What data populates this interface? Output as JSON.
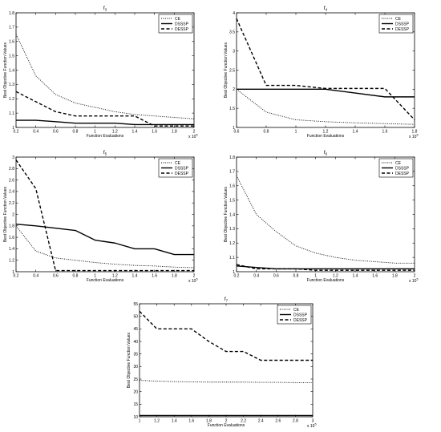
{
  "chart_data": [
    {
      "type": "line",
      "title": "f3",
      "title_base": "f",
      "title_sub": "3",
      "xlabel": "Function Evaluations",
      "ylabel": "Best Objective Function Values",
      "x_exponent": "x 10",
      "x_exponent_power": "5",
      "xlim": [
        0.2,
        2
      ],
      "ylim": [
        1,
        1.8
      ],
      "xticks": [
        "0.2",
        "0.4",
        "0.6",
        "0.8",
        "1",
        "1.2",
        "1.4",
        "1.6",
        "1.8",
        "2"
      ],
      "yticks": [
        "1",
        "1.1",
        "1.2",
        "1.3",
        "1.4",
        "1.5",
        "1.6",
        "1.7",
        "1.8"
      ],
      "legend_position": "top-right",
      "series": [
        {
          "name": "CE",
          "style": "dotted",
          "x": [
            0.2,
            0.4,
            0.6,
            0.8,
            1.0,
            1.2,
            1.4,
            1.6,
            1.8,
            2.0
          ],
          "y": [
            1.65,
            1.36,
            1.23,
            1.17,
            1.14,
            1.11,
            1.09,
            1.08,
            1.07,
            1.06
          ]
        },
        {
          "name": "DSSSP",
          "style": "solid",
          "x": [
            0.2,
            0.4,
            0.6,
            0.8,
            1.0,
            1.2,
            1.4,
            1.6,
            1.8,
            2.0
          ],
          "y": [
            1.05,
            1.05,
            1.04,
            1.03,
            1.03,
            1.03,
            1.02,
            1.02,
            1.02,
            1.02
          ]
        },
        {
          "name": "DESSP",
          "style": "dashed",
          "x": [
            0.2,
            0.4,
            0.6,
            0.8,
            1.0,
            1.2,
            1.4,
            1.6,
            1.8,
            2.0
          ],
          "y": [
            1.25,
            1.18,
            1.11,
            1.08,
            1.08,
            1.08,
            1.08,
            1.01,
            1.01,
            1.01
          ]
        }
      ]
    },
    {
      "type": "line",
      "title": "f4",
      "title_base": "f",
      "title_sub": "4",
      "xlabel": "Function Evaluations",
      "ylabel": "Best Objective Function Values",
      "x_exponent": "x 10",
      "x_exponent_power": "5",
      "xlim": [
        0.6,
        1.8
      ],
      "ylim": [
        1,
        4
      ],
      "xticks": [
        "0.6",
        "0.8",
        "1",
        "1.2",
        "1.4",
        "1.6",
        "1.8"
      ],
      "yticks": [
        "1",
        "1.5",
        "2",
        "2.5",
        "3",
        "3.5",
        "4"
      ],
      "legend_position": "top-right",
      "series": [
        {
          "name": "CE",
          "style": "dotted",
          "x": [
            0.6,
            0.8,
            1.0,
            1.2,
            1.4,
            1.6,
            1.8
          ],
          "y": [
            2.0,
            1.4,
            1.2,
            1.15,
            1.12,
            1.1,
            1.08
          ]
        },
        {
          "name": "DSSSP",
          "style": "solid",
          "x": [
            0.6,
            0.8,
            1.0,
            1.2,
            1.4,
            1.6,
            1.8
          ],
          "y": [
            2.0,
            2.0,
            2.0,
            2.0,
            1.9,
            1.8,
            1.8
          ]
        },
        {
          "name": "DESSP",
          "style": "dashed",
          "x": [
            0.6,
            0.8,
            1.0,
            1.2,
            1.4,
            1.6,
            1.8
          ],
          "y": [
            3.85,
            2.1,
            2.1,
            2.02,
            2.02,
            2.02,
            1.2
          ]
        }
      ]
    },
    {
      "type": "line",
      "title": "f5",
      "title_base": "f",
      "title_sub": "5",
      "xlabel": "Function Evaluations",
      "ylabel": "Best Objective Function Values",
      "x_exponent": "x 10",
      "x_exponent_power": "5",
      "xlim": [
        0.2,
        2
      ],
      "ylim": [
        1,
        3
      ],
      "xticks": [
        "0.2",
        "0.4",
        "0.6",
        "0.8",
        "1",
        "1.2",
        "1.4",
        "1.6",
        "1.8",
        "2"
      ],
      "yticks": [
        "1",
        "1.2",
        "1.4",
        "1.6",
        "1.8",
        "2",
        "2.2",
        "2.4",
        "2.6",
        "2.8",
        "3"
      ],
      "legend_position": "top-right",
      "series": [
        {
          "name": "CE",
          "style": "dotted",
          "x": [
            0.2,
            0.4,
            0.6,
            0.8,
            1.0,
            1.2,
            1.4,
            1.6,
            1.8,
            2.0
          ],
          "y": [
            1.8,
            1.36,
            1.24,
            1.2,
            1.16,
            1.13,
            1.11,
            1.1,
            1.08,
            1.07
          ]
        },
        {
          "name": "DSSSP",
          "style": "solid",
          "x": [
            0.2,
            0.4,
            0.6,
            0.8,
            1.0,
            1.2,
            1.4,
            1.6,
            1.8,
            2.0
          ],
          "y": [
            1.83,
            1.8,
            1.76,
            1.72,
            1.55,
            1.5,
            1.4,
            1.4,
            1.3,
            1.3
          ]
        },
        {
          "name": "DESSP",
          "style": "dashed",
          "x": [
            0.2,
            0.4,
            0.6,
            0.8,
            1.0,
            1.2,
            1.4,
            1.6,
            1.8,
            2.0
          ],
          "y": [
            2.95,
            2.45,
            1.02,
            1.02,
            1.02,
            1.02,
            1.02,
            1.02,
            1.02,
            1.02
          ]
        }
      ]
    },
    {
      "type": "line",
      "title": "f6",
      "title_base": "f",
      "title_sub": "6",
      "xlabel": "Function Evaluations",
      "ylabel": "Best Objective Function Values",
      "x_exponent": "x 10",
      "x_exponent_power": "5",
      "xlim": [
        0.2,
        2
      ],
      "ylim": [
        1,
        1.8
      ],
      "xticks": [
        "0.2",
        "0.4",
        "0.6",
        "0.8",
        "1",
        "1.2",
        "1.4",
        "1.6",
        "1.8",
        "2"
      ],
      "yticks": [
        "1",
        "1.1",
        "1.2",
        "1.3",
        "1.4",
        "1.5",
        "1.6",
        "1.7",
        "1.8"
      ],
      "legend_position": "top-right",
      "series": [
        {
          "name": "CE",
          "style": "dotted",
          "x": [
            0.2,
            0.4,
            0.6,
            0.8,
            1.0,
            1.2,
            1.4,
            1.6,
            1.8,
            2.0
          ],
          "y": [
            1.67,
            1.4,
            1.28,
            1.18,
            1.13,
            1.1,
            1.08,
            1.07,
            1.06,
            1.06
          ]
        },
        {
          "name": "DSSSP",
          "style": "solid",
          "x": [
            0.2,
            0.4,
            0.6,
            0.8,
            1.0,
            1.2,
            1.4,
            1.6,
            1.8,
            2.0
          ],
          "y": [
            1.04,
            1.03,
            1.02,
            1.02,
            1.02,
            1.02,
            1.02,
            1.02,
            1.02,
            1.02
          ]
        },
        {
          "name": "DESSP",
          "style": "dashed",
          "x": [
            0.2,
            0.4,
            0.6,
            0.8,
            1.0,
            1.2,
            1.4,
            1.6,
            1.8,
            2.0
          ],
          "y": [
            1.05,
            1.02,
            1.02,
            1.02,
            1.01,
            1.01,
            1.01,
            1.01,
            1.01,
            1.01
          ]
        }
      ]
    },
    {
      "type": "line",
      "title": "f7",
      "title_base": "f",
      "title_sub": "7",
      "xlabel": "Function Evaluations",
      "ylabel": "Best Objective Function Values",
      "x_exponent": "x 10",
      "x_exponent_power": "5",
      "xlim": [
        1,
        3
      ],
      "ylim": [
        10,
        55
      ],
      "xticks": [
        "1",
        "1.2",
        "1.4",
        "1.6",
        "1.8",
        "2",
        "2.2",
        "2.4",
        "2.6",
        "2.8",
        "3"
      ],
      "yticks": [
        "10",
        "15",
        "20",
        "25",
        "30",
        "35",
        "40",
        "45",
        "50",
        "55"
      ],
      "legend_position": "top-right",
      "series": [
        {
          "name": "CE",
          "style": "dotted",
          "x": [
            1.0,
            1.2,
            1.4,
            1.6,
            1.8,
            2.0,
            2.2,
            2.4,
            2.6,
            2.8,
            3.0
          ],
          "y": [
            24.5,
            24.2,
            24.0,
            23.9,
            23.8,
            23.8,
            23.8,
            23.7,
            23.7,
            23.6,
            23.6
          ]
        },
        {
          "name": "DSSSP",
          "style": "solid",
          "x": [
            1.0,
            1.2,
            1.4,
            1.6,
            1.8,
            2.0,
            2.2,
            2.4,
            2.6,
            2.8,
            3.0
          ],
          "y": [
            10.5,
            10.5,
            10.5,
            10.5,
            10.5,
            10.5,
            10.5,
            10.5,
            10.5,
            10.5,
            10.5
          ]
        },
        {
          "name": "DESSP",
          "style": "dashed",
          "x": [
            1.0,
            1.2,
            1.4,
            1.6,
            1.8,
            2.0,
            2.2,
            2.4,
            2.6,
            2.8,
            3.0
          ],
          "y": [
            52,
            45,
            45,
            45,
            40,
            36,
            36,
            32.5,
            32.5,
            32.5,
            32.5
          ]
        }
      ]
    }
  ]
}
